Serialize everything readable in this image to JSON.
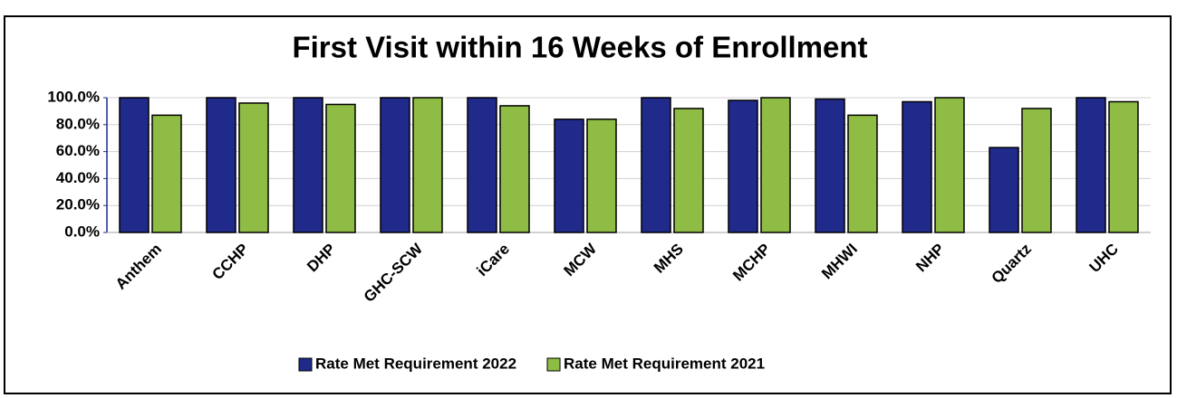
{
  "chart_data": {
    "type": "bar",
    "title": "First Visit within 16 Weeks  of Enrollment",
    "categories": [
      "Anthem",
      "CCHP",
      "DHP",
      "GHC-SCW",
      "iCare",
      "MCW",
      "MHS",
      "MCHP",
      "MHWI",
      "NHP",
      "Quartz",
      "UHC"
    ],
    "series": [
      {
        "name": "Rate Met Requirement 2022",
        "color": "#1f2a8a",
        "values": [
          100,
          100,
          100,
          100,
          100,
          84,
          100,
          98,
          99,
          97,
          63,
          100
        ]
      },
      {
        "name": "Rate Met Requirement 2021",
        "color": "#8fbc45",
        "values": [
          87,
          96,
          95,
          100,
          94,
          84,
          92,
          100,
          87,
          100,
          92,
          97
        ]
      }
    ],
    "ylim": [
      0,
      100
    ],
    "yticks": [
      {
        "value": 0,
        "label": "0.0%"
      },
      {
        "value": 20,
        "label": "20.0%"
      },
      {
        "value": 40,
        "label": "40.0%"
      },
      {
        "value": 60,
        "label": "60.0%"
      },
      {
        "value": 80,
        "label": "80.0%"
      },
      {
        "value": 100,
        "label": "100.0%"
      }
    ],
    "grid": true,
    "legend": "bottom"
  }
}
